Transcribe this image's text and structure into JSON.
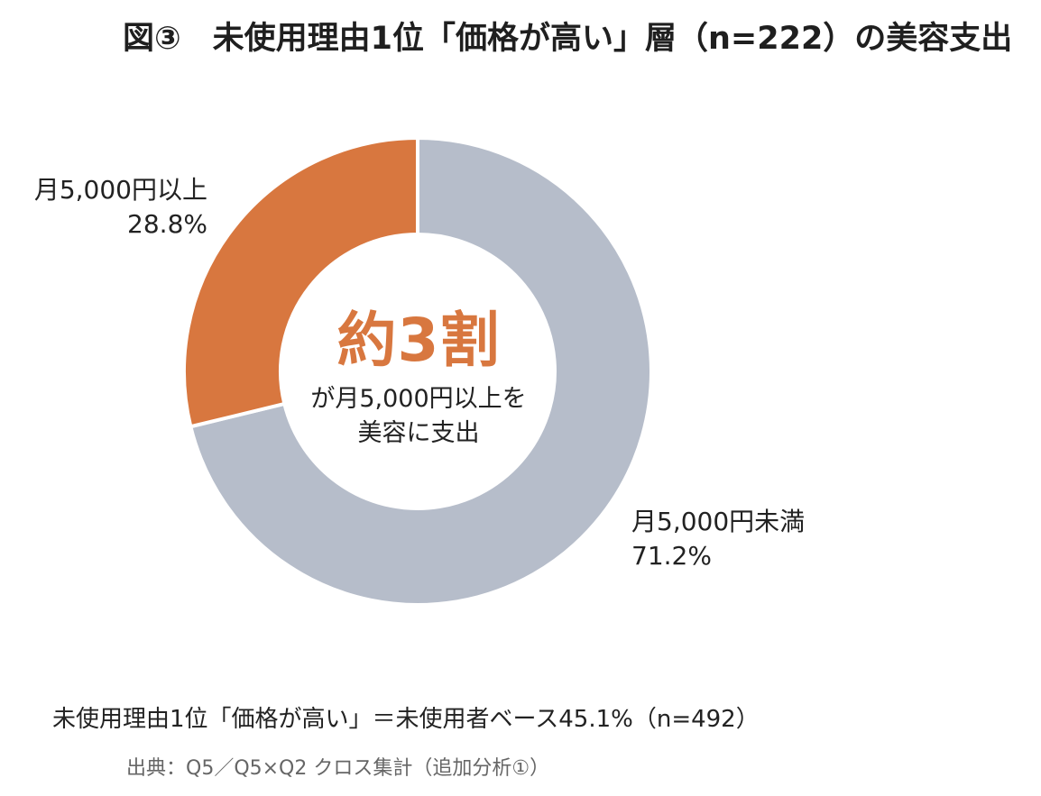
{
  "title": "図③　未使用理由1位「価格が高い」層（n=222）の美容支出",
  "chart_data": {
    "type": "pie",
    "donut": true,
    "title": "図③　未使用理由1位「価格が高い」層（n=222）の美容支出",
    "slices": [
      {
        "label": "月5,000円以上",
        "value": 28.8,
        "value_label": "28.8%",
        "color": "#d8773f"
      },
      {
        "label": "月5,000円未満",
        "value": 71.2,
        "value_label": "71.2%",
        "color": "#b6bdca"
      }
    ],
    "center_text": {
      "headline": "約3割",
      "line1": "が月5,000円以上を",
      "line2": "美容に支出"
    }
  },
  "footnote": "未使用理由1位「価格が高い」＝未使用者ベース45.1%（n=492）",
  "source": "出典：Q5／Q5×Q2 クロス集計（追加分析①）"
}
